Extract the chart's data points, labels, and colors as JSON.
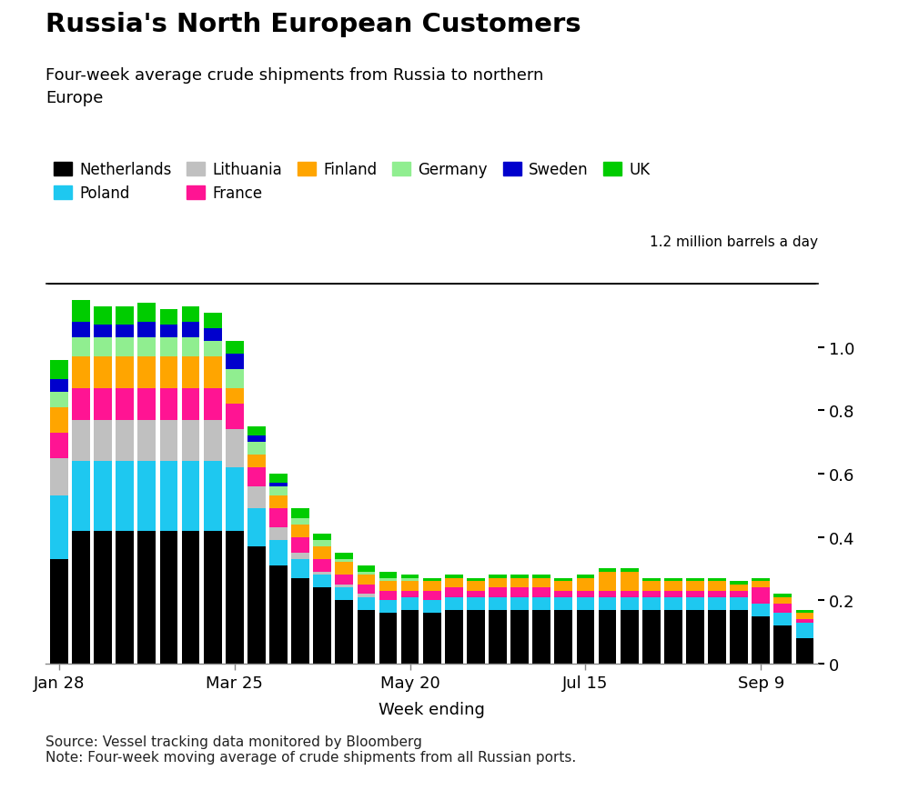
{
  "title": "Russia's North European Customers",
  "subtitle": "Four-week average crude shipments from Russia to northern\nEurope",
  "ylabel_annotation": "1.2 million barrels a day",
  "xlabel": "Week ending",
  "source": "Source: Vessel tracking data monitored by Bloomberg\nNote: Four-week moving average of crude shipments from all Russian ports.",
  "ylim": [
    0,
    1.25
  ],
  "yticks": [
    0,
    0.2,
    0.4,
    0.6,
    0.8,
    1.0
  ],
  "countries": [
    "Netherlands",
    "Poland",
    "Lithuania",
    "France",
    "Finland",
    "Germany",
    "Sweden",
    "UK"
  ],
  "colors": [
    "#000000",
    "#1EC8F0",
    "#C0C0C0",
    "#FF1493",
    "#FFA500",
    "#90EE90",
    "#0000CD",
    "#00CC00"
  ],
  "xtick_labels": [
    "Jan 28",
    "Mar 25",
    "May 20",
    "Jul 15",
    "Sep 9"
  ],
  "xtick_positions": [
    0,
    8,
    16,
    24,
    32
  ],
  "data": {
    "Netherlands": [
      0.33,
      0.42,
      0.42,
      0.42,
      0.42,
      0.42,
      0.42,
      0.42,
      0.42,
      0.37,
      0.31,
      0.27,
      0.24,
      0.2,
      0.17,
      0.16,
      0.17,
      0.16,
      0.17,
      0.17,
      0.17,
      0.17,
      0.17,
      0.17,
      0.17,
      0.17,
      0.17,
      0.17,
      0.17,
      0.17,
      0.17,
      0.17,
      0.15,
      0.12,
      0.08
    ],
    "Poland": [
      0.2,
      0.22,
      0.22,
      0.22,
      0.22,
      0.22,
      0.22,
      0.22,
      0.2,
      0.12,
      0.08,
      0.06,
      0.04,
      0.04,
      0.04,
      0.04,
      0.04,
      0.04,
      0.04,
      0.04,
      0.04,
      0.04,
      0.04,
      0.04,
      0.04,
      0.04,
      0.04,
      0.04,
      0.04,
      0.04,
      0.04,
      0.04,
      0.04,
      0.04,
      0.05
    ],
    "Lithuania": [
      0.12,
      0.13,
      0.13,
      0.13,
      0.13,
      0.13,
      0.13,
      0.13,
      0.12,
      0.07,
      0.04,
      0.02,
      0.01,
      0.01,
      0.01,
      0.0,
      0.0,
      0.0,
      0.0,
      0.0,
      0.0,
      0.0,
      0.0,
      0.0,
      0.0,
      0.0,
      0.0,
      0.0,
      0.0,
      0.0,
      0.0,
      0.0,
      0.0,
      0.0,
      0.0
    ],
    "France": [
      0.08,
      0.1,
      0.1,
      0.1,
      0.1,
      0.1,
      0.1,
      0.1,
      0.08,
      0.06,
      0.06,
      0.05,
      0.04,
      0.03,
      0.03,
      0.03,
      0.02,
      0.03,
      0.03,
      0.02,
      0.03,
      0.03,
      0.03,
      0.02,
      0.02,
      0.02,
      0.02,
      0.02,
      0.02,
      0.02,
      0.02,
      0.02,
      0.05,
      0.03,
      0.01
    ],
    "Finland": [
      0.08,
      0.1,
      0.1,
      0.1,
      0.1,
      0.1,
      0.1,
      0.1,
      0.05,
      0.04,
      0.04,
      0.04,
      0.04,
      0.04,
      0.03,
      0.03,
      0.03,
      0.03,
      0.03,
      0.03,
      0.03,
      0.03,
      0.03,
      0.03,
      0.04,
      0.06,
      0.06,
      0.03,
      0.03,
      0.03,
      0.03,
      0.02,
      0.02,
      0.02,
      0.02
    ],
    "Germany": [
      0.05,
      0.06,
      0.06,
      0.06,
      0.06,
      0.06,
      0.06,
      0.05,
      0.06,
      0.04,
      0.03,
      0.02,
      0.02,
      0.01,
      0.01,
      0.01,
      0.01,
      0.0,
      0.0,
      0.0,
      0.0,
      0.0,
      0.0,
      0.0,
      0.0,
      0.0,
      0.0,
      0.0,
      0.0,
      0.0,
      0.0,
      0.0,
      0.0,
      0.0,
      0.0
    ],
    "Sweden": [
      0.04,
      0.05,
      0.04,
      0.04,
      0.05,
      0.04,
      0.05,
      0.04,
      0.05,
      0.02,
      0.01,
      0.0,
      0.0,
      0.0,
      0.0,
      0.0,
      0.0,
      0.0,
      0.0,
      0.0,
      0.0,
      0.0,
      0.0,
      0.0,
      0.0,
      0.0,
      0.0,
      0.0,
      0.0,
      0.0,
      0.0,
      0.0,
      0.0,
      0.0,
      0.0
    ],
    "UK": [
      0.06,
      0.07,
      0.06,
      0.06,
      0.06,
      0.05,
      0.05,
      0.05,
      0.04,
      0.03,
      0.03,
      0.03,
      0.02,
      0.02,
      0.02,
      0.02,
      0.01,
      0.01,
      0.01,
      0.01,
      0.01,
      0.01,
      0.01,
      0.01,
      0.01,
      0.01,
      0.01,
      0.01,
      0.01,
      0.01,
      0.01,
      0.01,
      0.01,
      0.01,
      0.01
    ]
  }
}
